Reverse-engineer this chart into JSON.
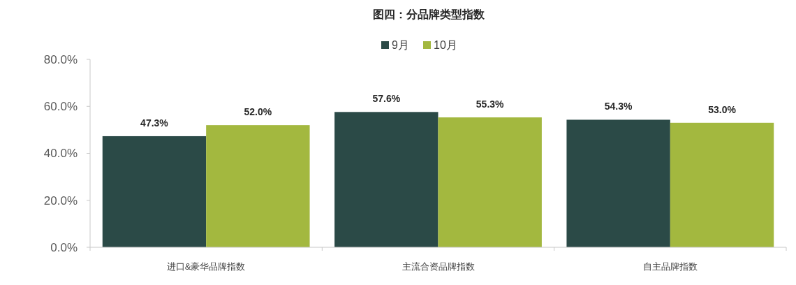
{
  "chart_data": {
    "type": "bar",
    "title": "图四：分品牌类型指数",
    "categories": [
      "进口&豪华品牌指数",
      "主流合资品牌指数",
      "自主品牌指数"
    ],
    "series": [
      {
        "name": "9月",
        "color": "#2b4a47",
        "values": [
          47.3,
          57.6,
          54.3
        ],
        "value_labels": [
          "47.3%",
          "57.6%",
          "54.3%"
        ]
      },
      {
        "name": "10月",
        "color": "#a3b83f",
        "values": [
          52.0,
          55.3,
          53.0
        ],
        "value_labels": [
          "52.0%",
          "55.3%",
          "53.0%"
        ]
      }
    ],
    "ylim": [
      0,
      80
    ],
    "yticks": [
      {
        "value": 0,
        "label": "0.0%"
      },
      {
        "value": 20,
        "label": "20.0%"
      },
      {
        "value": 40,
        "label": "40.0%"
      },
      {
        "value": 60,
        "label": "60.0%"
      },
      {
        "value": 80,
        "label": "80.0%"
      }
    ],
    "legend": "top"
  }
}
